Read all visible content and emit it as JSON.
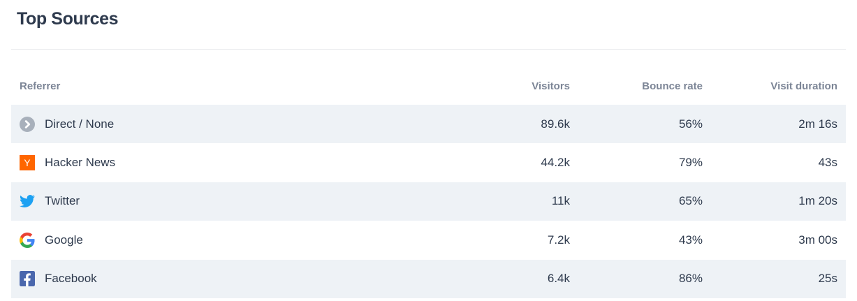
{
  "title": "Top Sources",
  "table": {
    "columns": {
      "referrer": "Referrer",
      "visitors": "Visitors",
      "bounce_rate": "Bounce rate",
      "visit_duration": "Visit duration"
    },
    "rows": [
      {
        "icon": "direct-chevron-icon",
        "referrer": "Direct / None",
        "visitors": "89.6k",
        "bounce_rate": "56%",
        "visit_duration": "2m 16s"
      },
      {
        "icon": "hacker-news-icon",
        "referrer": "Hacker News",
        "visitors": "44.2k",
        "bounce_rate": "79%",
        "visit_duration": "43s"
      },
      {
        "icon": "twitter-icon",
        "referrer": "Twitter",
        "visitors": "11k",
        "bounce_rate": "65%",
        "visit_duration": "1m 20s"
      },
      {
        "icon": "google-icon",
        "referrer": "Google",
        "visitors": "7.2k",
        "bounce_rate": "43%",
        "visit_duration": "3m 00s"
      },
      {
        "icon": "facebook-icon",
        "referrer": "Facebook",
        "visitors": "6.4k",
        "bounce_rate": "86%",
        "visit_duration": "25s"
      }
    ]
  },
  "colors": {
    "title_text": "#2e3a4d",
    "header_text": "#7c8596",
    "row_text": "#2e3a4d",
    "row_stripe": "#eef2f6",
    "divider": "#e7e9ec",
    "direct_circle": "#a8b0bb",
    "hacker_news_orange": "#ff6600",
    "twitter_blue": "#1da1f2",
    "facebook_blue": "#4a67ad",
    "google_blue": "#4285f4",
    "google_red": "#ea4335",
    "google_yellow": "#fbbc05",
    "google_green": "#34a853"
  }
}
